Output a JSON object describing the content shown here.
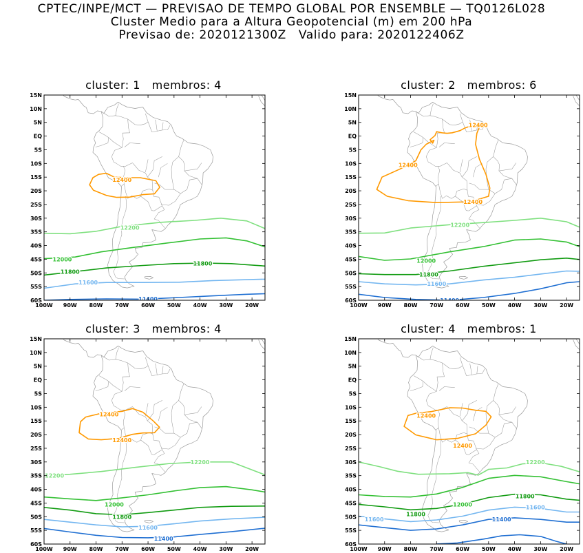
{
  "header": {
    "line1": "CPTEC/INPE/MCT — PREVISAO DE TEMPO GLOBAL POR ENSEMBLE — TQ0126L028",
    "line2": "Cluster Medio para a Altura Geopotencial (m) em 200 hPa",
    "line3": "Previsao de: 2020121300Z   Valido para: 2020122406Z"
  },
  "lat_ticks": [
    "15N",
    "10N",
    "5N",
    "EQ",
    "5S",
    "10S",
    "15S",
    "20S",
    "25S",
    "30S",
    "35S",
    "40S",
    "45S",
    "50S",
    "55S",
    "60S"
  ],
  "lon_ticks": [
    "100W",
    "90W",
    "80W",
    "70W",
    "60W",
    "50W",
    "40W",
    "30W",
    "20W"
  ],
  "colors": {
    "c12400": "#ff9900",
    "c12200": "#7fe07f",
    "c12000": "#33c033",
    "c11800": "#119b11",
    "c11600": "#73b6f0",
    "c11400": "#1f6fd2",
    "map": "#9a9a9a"
  },
  "panels": [
    {
      "title": "cluster: 1   membros: 4",
      "labels": [
        {
          "text": "12400",
          "color": "c12400",
          "lon": -70,
          "lat": -16
        },
        {
          "text": "12200",
          "color": "c12200",
          "lon": -67,
          "lat": -33.5
        },
        {
          "text": "12000",
          "color": "c12000",
          "lon": -93,
          "lat": -45
        },
        {
          "text": "11800",
          "color": "c11800",
          "lon": -90,
          "lat": -49.5
        },
        {
          "text": "11800",
          "color": "c11800",
          "lon": -39,
          "lat": -46.5
        },
        {
          "text": "11600",
          "color": "c11600",
          "lon": -83,
          "lat": -53.5
        },
        {
          "text": "11400",
          "color": "c11400",
          "lon": -60,
          "lat": -59.5
        }
      ]
    },
    {
      "title": "cluster: 2   membros: 6",
      "labels": [
        {
          "text": "12400",
          "color": "c12400",
          "lon": -54,
          "lat": 4
        },
        {
          "text": "12400",
          "color": "c12400",
          "lon": -81,
          "lat": -10.5
        },
        {
          "text": "12400",
          "color": "c12400",
          "lon": -56,
          "lat": -24
        },
        {
          "text": "12200",
          "color": "c12200",
          "lon": -61,
          "lat": -32.5
        },
        {
          "text": "12000",
          "color": "c12000",
          "lon": -74,
          "lat": -45.5
        },
        {
          "text": "11800",
          "color": "c11800",
          "lon": -73,
          "lat": -50.5
        },
        {
          "text": "11600",
          "color": "c11600",
          "lon": -70,
          "lat": -54
        },
        {
          "text": "11400",
          "color": "c11400",
          "lon": -65,
          "lat": -60
        }
      ]
    },
    {
      "title": "cluster: 3   membros: 4",
      "labels": [
        {
          "text": "12400",
          "color": "c12400",
          "lon": -75,
          "lat": -12.5
        },
        {
          "text": "12400",
          "color": "c12400",
          "lon": -70,
          "lat": -22
        },
        {
          "text": "12200",
          "color": "c12200",
          "lon": -40,
          "lat": -30
        },
        {
          "text": "12200",
          "color": "c12200",
          "lon": -96,
          "lat": -35
        },
        {
          "text": "12000",
          "color": "c12000",
          "lon": -73,
          "lat": -45.5
        },
        {
          "text": "11800",
          "color": "c11800",
          "lon": -70,
          "lat": -50
        },
        {
          "text": "11600",
          "color": "c11600",
          "lon": -60,
          "lat": -54
        },
        {
          "text": "11400",
          "color": "c11400",
          "lon": -54,
          "lat": -58
        }
      ]
    },
    {
      "title": "cluster: 4   membros: 1",
      "labels": [
        {
          "text": "12400",
          "color": "c12400",
          "lon": -74,
          "lat": -13
        },
        {
          "text": "12400",
          "color": "c12400",
          "lon": -60,
          "lat": -24
        },
        {
          "text": "12200",
          "color": "c12200",
          "lon": -32,
          "lat": -30
        },
        {
          "text": "11800",
          "color": "c11800",
          "lon": -36,
          "lat": -42.5
        },
        {
          "text": "12000",
          "color": "c12000",
          "lon": -60,
          "lat": -45.5
        },
        {
          "text": "11800",
          "color": "c11800",
          "lon": -78,
          "lat": -49
        },
        {
          "text": "11600",
          "color": "c11600",
          "lon": -32,
          "lat": -46.5
        },
        {
          "text": "11600",
          "color": "c11600",
          "lon": -94,
          "lat": -51
        },
        {
          "text": "11400",
          "color": "c11400",
          "lon": -45,
          "lat": -51
        }
      ]
    }
  ]
}
